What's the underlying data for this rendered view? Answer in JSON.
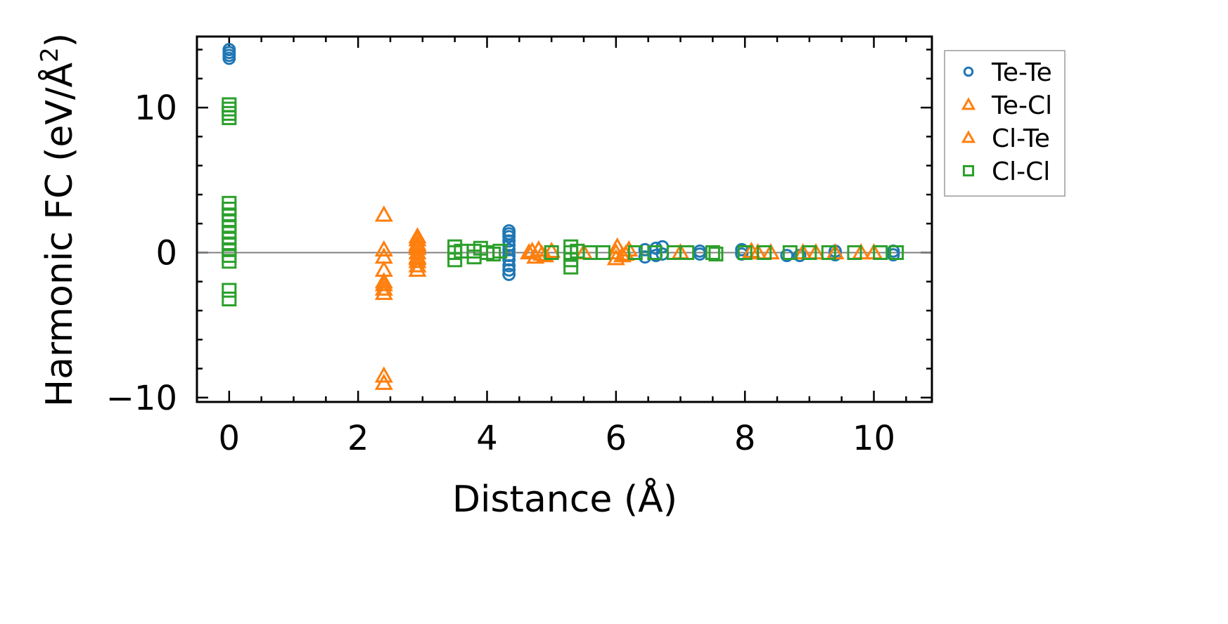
{
  "chart_data": {
    "type": "scatter",
    "title": "",
    "xlabel": "Distance (Å)",
    "ylabel_main": "Harmonic FC (eV/Å",
    "ylabel_sup": "2",
    "ylabel_close": ")",
    "xlim": [
      -0.5,
      10.9
    ],
    "ylim": [
      -10.3,
      14.9
    ],
    "xticks": [
      0,
      2,
      4,
      6,
      8,
      10
    ],
    "xtick_labels": [
      "0",
      "2",
      "4",
      "6",
      "8",
      "10"
    ],
    "yticks": [
      -10,
      0,
      10
    ],
    "ytick_labels": [
      "−10",
      "0",
      "10"
    ],
    "reference_line_y": 0,
    "grid": false,
    "legend_position": "outside-right",
    "series": [
      {
        "name": "Te-Te",
        "marker": "circle",
        "color": "#1f77b4",
        "points": [
          [
            0,
            13.4
          ],
          [
            0,
            13.6
          ],
          [
            0,
            13.8
          ],
          [
            0,
            14.0
          ],
          [
            4.34,
            -1.5
          ],
          [
            4.34,
            -1.2
          ],
          [
            4.34,
            -0.9
          ],
          [
            4.34,
            -0.5
          ],
          [
            4.34,
            -0.2
          ],
          [
            4.34,
            0.2
          ],
          [
            4.34,
            0.5
          ],
          [
            4.34,
            0.8
          ],
          [
            4.34,
            1.1
          ],
          [
            4.34,
            1.3
          ],
          [
            4.34,
            1.5
          ],
          [
            6.45,
            -0.3
          ],
          [
            6.45,
            0.2
          ],
          [
            6.62,
            -0.2
          ],
          [
            6.62,
            0.3
          ],
          [
            6.72,
            0.4
          ],
          [
            6.72,
            -0.1
          ],
          [
            7.3,
            0.1
          ],
          [
            7.3,
            -0.1
          ],
          [
            7.95,
            0.2
          ],
          [
            7.95,
            -0.1
          ],
          [
            8.65,
            -0.2
          ],
          [
            8.85,
            -0.2
          ],
          [
            9.4,
            -0.15
          ],
          [
            9.4,
            0.1
          ],
          [
            10.3,
            -0.15
          ],
          [
            10.3,
            0.1
          ]
        ]
      },
      {
        "name": "Te-Cl",
        "marker": "triangle",
        "color": "#ff7f0e",
        "points": [
          [
            2.4,
            -9.0
          ],
          [
            2.4,
            -8.5
          ],
          [
            2.4,
            -2.8
          ],
          [
            2.4,
            -2.5
          ],
          [
            2.4,
            -2.0
          ],
          [
            2.4,
            -1.2
          ],
          [
            2.4,
            -0.3
          ],
          [
            2.4,
            0.2
          ],
          [
            2.4,
            2.6
          ],
          [
            2.92,
            -1.2
          ],
          [
            2.92,
            -0.9
          ],
          [
            2.92,
            -0.6
          ],
          [
            2.92,
            -0.3
          ],
          [
            2.92,
            0.0
          ],
          [
            2.92,
            0.3
          ],
          [
            2.92,
            0.6
          ],
          [
            2.92,
            0.9
          ],
          [
            2.92,
            1.1
          ],
          [
            4.65,
            0.0
          ],
          [
            4.75,
            -0.3
          ],
          [
            4.8,
            0.2
          ],
          [
            4.9,
            -0.2
          ],
          [
            5.0,
            0.1
          ],
          [
            5.5,
            0.0
          ],
          [
            6.0,
            -0.4
          ],
          [
            6.02,
            0.4
          ],
          [
            6.1,
            -0.2
          ],
          [
            6.2,
            0.2
          ],
          [
            7.0,
            0.0
          ],
          [
            8.1,
            0.1
          ],
          [
            8.4,
            0.0
          ],
          [
            8.9,
            0.0
          ],
          [
            9.4,
            0.0
          ],
          [
            10.0,
            0.0
          ]
        ]
      },
      {
        "name": "Cl-Te",
        "marker": "triangle",
        "color": "#ff7f0e",
        "points": [
          [
            2.4,
            -2.2
          ],
          [
            2.92,
            -0.4
          ],
          [
            2.92,
            0.5
          ],
          [
            4.7,
            0.1
          ],
          [
            4.85,
            -0.1
          ],
          [
            6.0,
            0.0
          ],
          [
            6.15,
            -0.1
          ],
          [
            8.2,
            0.0
          ],
          [
            9.1,
            0.0
          ],
          [
            9.8,
            0.0
          ]
        ]
      },
      {
        "name": "Cl-Cl",
        "marker": "square",
        "color": "#2ca02c",
        "points": [
          [
            0,
            -3.2
          ],
          [
            0,
            -2.6
          ],
          [
            0,
            -0.6
          ],
          [
            0,
            -0.2
          ],
          [
            0,
            0.2
          ],
          [
            0,
            0.6
          ],
          [
            0,
            1.0
          ],
          [
            0,
            1.4
          ],
          [
            0,
            1.8
          ],
          [
            0,
            2.2
          ],
          [
            0,
            2.6
          ],
          [
            0,
            3.0
          ],
          [
            0,
            3.4
          ],
          [
            0,
            9.3
          ],
          [
            0,
            9.6
          ],
          [
            0,
            9.9
          ],
          [
            0,
            10.2
          ],
          [
            3.5,
            -0.5
          ],
          [
            3.5,
            0.0
          ],
          [
            3.5,
            0.4
          ],
          [
            3.6,
            0.1
          ],
          [
            3.8,
            -0.3
          ],
          [
            3.8,
            0.1
          ],
          [
            3.9,
            0.3
          ],
          [
            4.0,
            0.0
          ],
          [
            4.1,
            -0.1
          ],
          [
            4.2,
            0.1
          ],
          [
            5.0,
            0.0
          ],
          [
            5.3,
            -1.0
          ],
          [
            5.3,
            -0.5
          ],
          [
            5.3,
            0.0
          ],
          [
            5.3,
            0.4
          ],
          [
            5.4,
            0.1
          ],
          [
            5.6,
            0.0
          ],
          [
            5.8,
            0.0
          ],
          [
            6.3,
            0.0
          ],
          [
            6.6,
            0.0
          ],
          [
            6.9,
            0.0
          ],
          [
            7.1,
            0.0
          ],
          [
            7.5,
            0.0
          ],
          [
            7.55,
            -0.1
          ],
          [
            8.0,
            0.0
          ],
          [
            8.3,
            0.0
          ],
          [
            8.7,
            0.0
          ],
          [
            9.0,
            0.0
          ],
          [
            9.3,
            0.0
          ],
          [
            9.7,
            0.0
          ],
          [
            10.1,
            0.0
          ],
          [
            10.35,
            0.0
          ]
        ]
      }
    ]
  }
}
